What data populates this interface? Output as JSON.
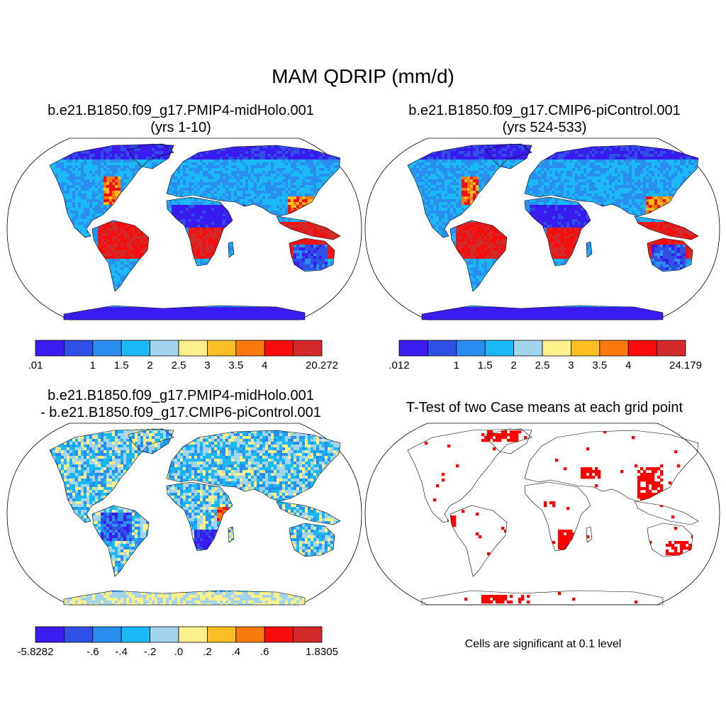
{
  "main_title": "MAM QDRIP (mm/d)",
  "panels": [
    {
      "id": "midholo",
      "title_line1": "b.e21.B1850.f09_g17.PMIP4-midHolo.001",
      "title_line2": "(yrs 1-10)"
    },
    {
      "id": "picontrol",
      "title_line1": "b.e21.B1850.f09_g17.CMIP6-piControl.001",
      "title_line2": "(yrs 524-533)"
    },
    {
      "id": "difference",
      "title_line1": "b.e21.B1850.f09_g17.PMIP4-midHolo.001",
      "title_line2": "- b.e21.B1850.f09_g17.CMIP6-piControl.001"
    },
    {
      "id": "ttest",
      "title_line1": "T-Test of two Case means at each grid point",
      "title_line2": ""
    }
  ],
  "ttest_note": "Cells are significant at 0.1 level",
  "colors": {
    "palette": [
      "#3a1cf0",
      "#2e50e6",
      "#2a8ef0",
      "#1ab8f4",
      "#a3d4ee",
      "#fdf08a",
      "#fbbd22",
      "#f97a0c",
      "#fb0c0c",
      "#d22a2a"
    ],
    "land_mask": "#ffffff",
    "significant": "#ff0000",
    "coast": "#000000"
  },
  "colorbars": [
    {
      "panel": "midholo",
      "labels": [
        ".01",
        "",
        "1",
        "1.5",
        "2",
        "2.5",
        "3",
        "3.5",
        "4",
        "",
        "20.272"
      ]
    },
    {
      "panel": "picontrol",
      "labels": [
        ".012",
        "",
        "1",
        "1.5",
        "2",
        "2.5",
        "3",
        "3.5",
        "4",
        "",
        "24.179"
      ]
    },
    {
      "panel": "difference",
      "labels": [
        "-5.8282",
        "",
        "-.6",
        "-.4",
        "-.2",
        ".0",
        ".2",
        ".4",
        ".6",
        "",
        "1.8305"
      ]
    }
  ]
}
